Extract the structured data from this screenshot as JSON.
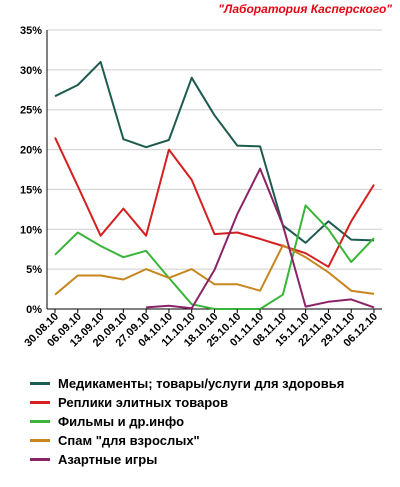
{
  "source": "\"Лаборатория Касперского\"",
  "chart_data": {
    "type": "line",
    "title": "",
    "xlabel": "",
    "ylabel": "",
    "ylim": [
      0,
      35
    ],
    "yticks": [
      "0%",
      "5%",
      "10%",
      "15%",
      "20%",
      "25%",
      "30%",
      "35%"
    ],
    "grid": "horizontal",
    "legend_position": "bottom",
    "categories": [
      "30.08.10",
      "06.09.10",
      "13.09.10",
      "20.09.10",
      "27.09.10",
      "04.10.10",
      "11.10.10",
      "18.10.10",
      "25.10.10",
      "01.11.10",
      "08.11.10",
      "15.11.10",
      "22.11.10",
      "29.11.10",
      "06.12.10"
    ],
    "series": [
      {
        "name": "Медикаменты; товары/услуги для здоровья",
        "color": "#1e5b4f",
        "values": [
          26.7,
          28.1,
          31.0,
          21.3,
          20.3,
          21.2,
          29.0,
          24.3,
          20.5,
          20.4,
          10.5,
          8.3,
          11.0,
          8.7,
          8.6
        ]
      },
      {
        "name": "Реплики элитных товаров",
        "color": "#d42020",
        "values": [
          21.5,
          15.4,
          9.2,
          12.6,
          9.2,
          20.0,
          16.2,
          9.4,
          9.6,
          8.8,
          7.9,
          7.0,
          5.3,
          11.0,
          15.6
        ]
      },
      {
        "name": "Фильмы и др.инфо",
        "color": "#3ab53a",
        "values": [
          6.8,
          9.6,
          7.9,
          6.5,
          7.3,
          3.9,
          0.6,
          0.0,
          0.0,
          0.0,
          1.8,
          13.0,
          10.0,
          5.9,
          8.9
        ]
      },
      {
        "name": "Спам \"для взрослых\"",
        "color": "#c8861e",
        "values": [
          1.8,
          4.2,
          4.2,
          3.7,
          5.0,
          3.9,
          5.0,
          3.1,
          3.1,
          2.3,
          8.0,
          6.5,
          4.6,
          2.3,
          1.9
        ]
      },
      {
        "name": "Азартные игры",
        "color": "#8b2466",
        "values": [
          null,
          null,
          null,
          null,
          0.2,
          0.4,
          0.1,
          4.9,
          11.9,
          17.6,
          10.5,
          0.3,
          0.9,
          1.2,
          0.2
        ]
      }
    ]
  }
}
